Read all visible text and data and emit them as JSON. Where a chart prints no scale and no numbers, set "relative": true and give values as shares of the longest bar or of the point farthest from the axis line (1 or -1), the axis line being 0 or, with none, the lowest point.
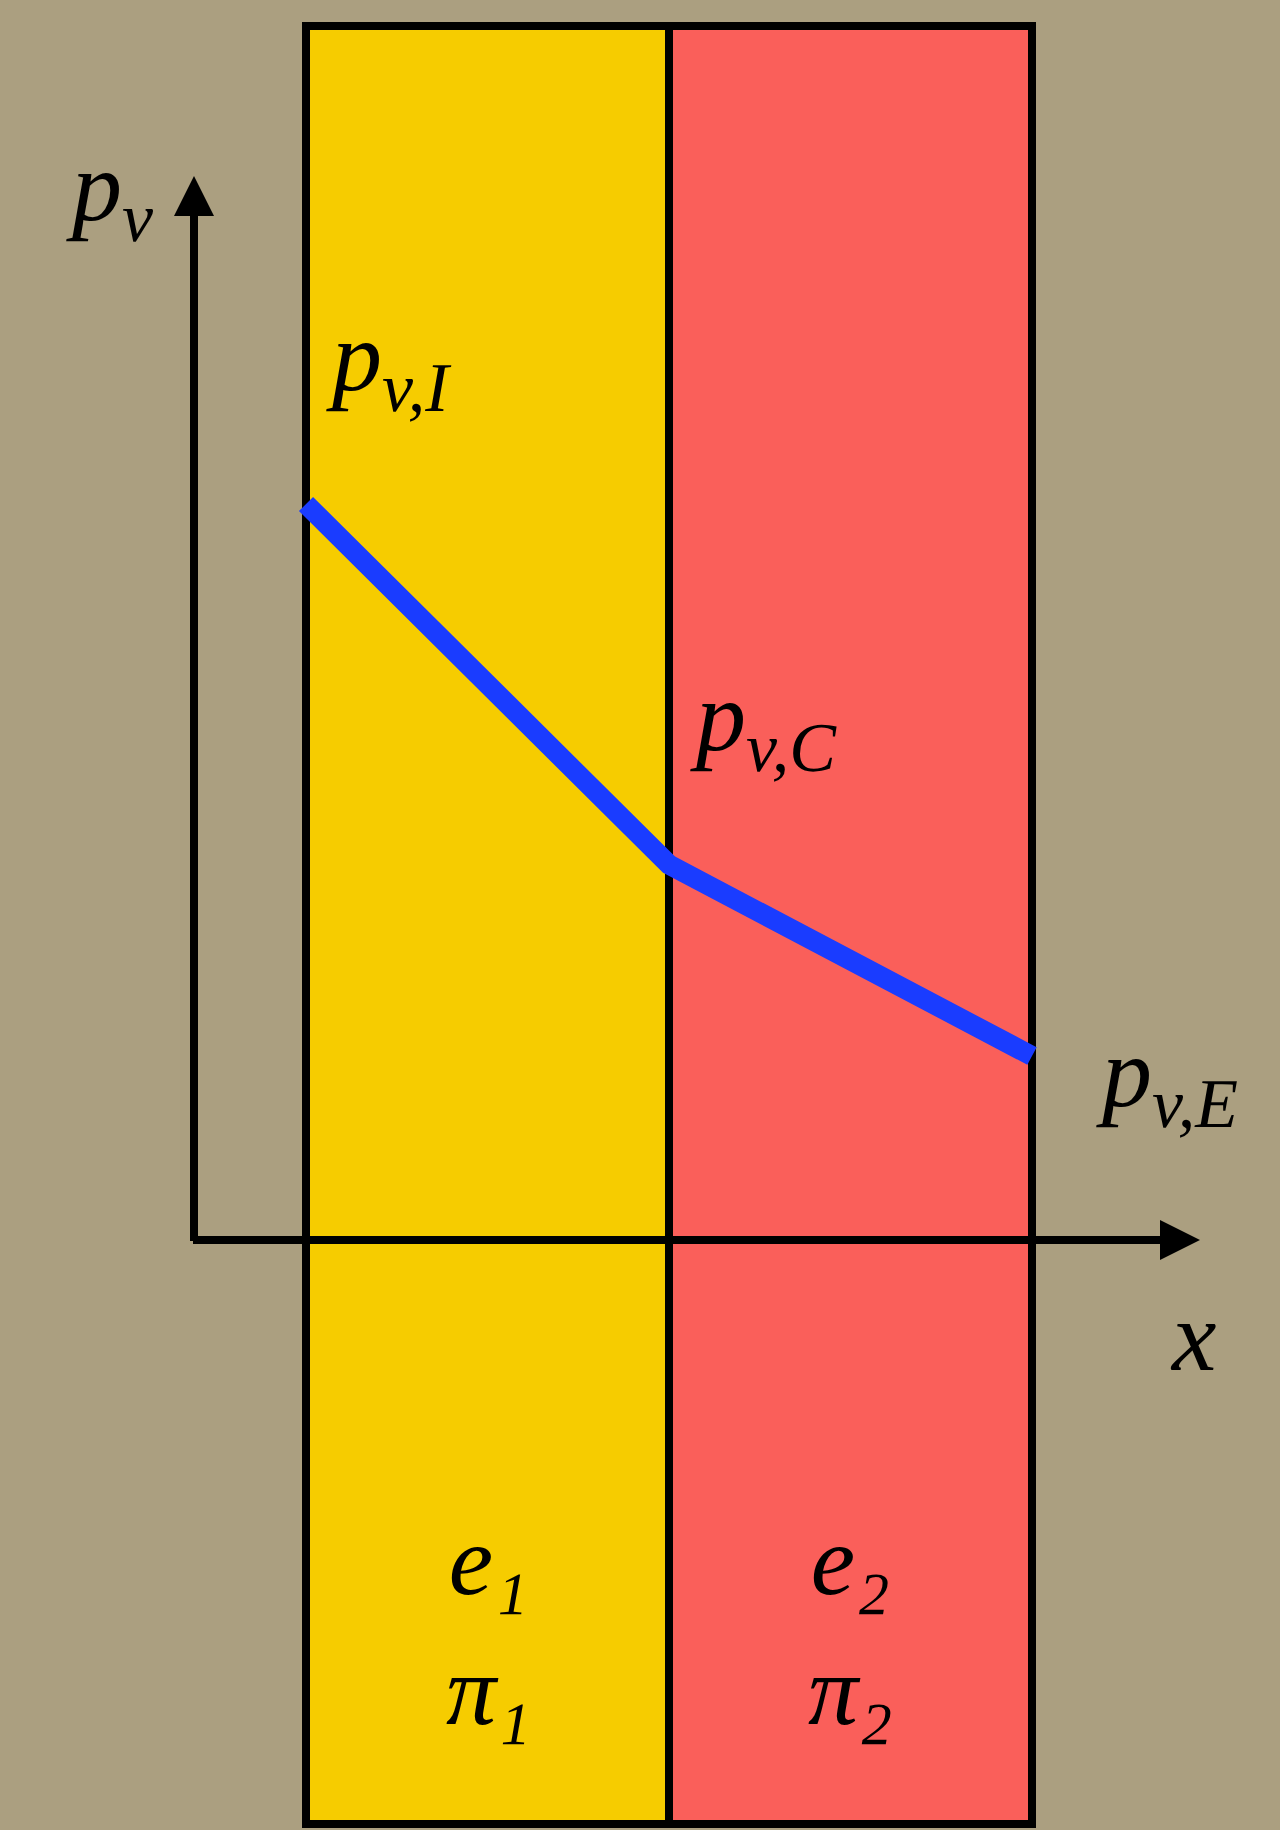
{
  "chart_data": {
    "type": "line",
    "relative": true,
    "categories": [
      "p$_{v,I}$",
      "p$_{v,C}$",
      "p$_{v,E}$"
    ],
    "series": [
      {
        "color": "#1a3cff",
        "values": [
          1,
          0.51,
          0.25
        ]
      }
    ],
    "xlabel": "x",
    "ylabel": "p$_{v}$",
    "bands": [
      {
        "axis": "x",
        "from": "p$_{v,I}$",
        "to": "p$_{v,C}$",
        "label": "e₁\nπ₁",
        "color": "#f6cc00"
      },
      {
        "axis": "x",
        "from": "p$_{v,C}$",
        "to": "p$_{v,E}$",
        "label": "e₂\nπ₂",
        "color": "#fa5f5a"
      }
    ]
  }
}
